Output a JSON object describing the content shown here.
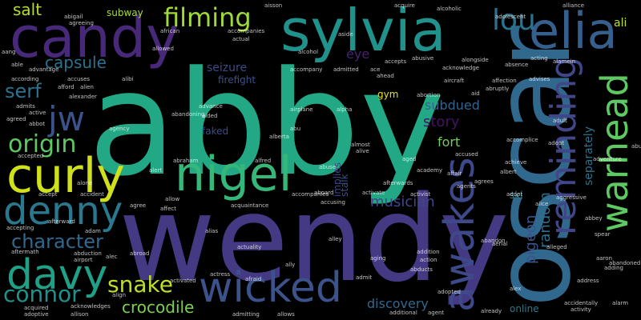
{
  "word_cloud": {
    "words": [
      {
        "text": "abby",
        "color": "#22a884"
      },
      {
        "text": "wendy",
        "color": "#443983"
      },
      {
        "text": "oscar",
        "color": "#31688e"
      },
      {
        "text": "candy",
        "color": "#482878"
      },
      {
        "text": "sylvia",
        "color": "#21918c"
      },
      {
        "text": "curly",
        "color": "#d0e11c"
      },
      {
        "text": "nigel",
        "color": "#35b779"
      },
      {
        "text": "elia",
        "color": "#35608d"
      },
      {
        "text": "warhead",
        "color": "#5ec962"
      },
      {
        "text": "reminding",
        "color": "#404688"
      },
      {
        "text": "awakes",
        "color": "#3e4989"
      },
      {
        "text": "davy",
        "color": "#1fa187"
      },
      {
        "text": "denny",
        "color": "#2a788e"
      },
      {
        "text": "wicked",
        "color": "#3b528b"
      },
      {
        "text": "filming",
        "color": "#a0da39"
      },
      {
        "text": "lou",
        "color": "#2c728e"
      },
      {
        "text": "jw",
        "color": "#3b528b"
      },
      {
        "text": "origin",
        "color": "#5ec962"
      },
      {
        "text": "serf",
        "color": "#2c728e"
      },
      {
        "text": "snake",
        "color": "#bddf26"
      },
      {
        "text": "character",
        "color": "#31688e"
      },
      {
        "text": "connor",
        "color": "#21918c"
      },
      {
        "text": "crocodile",
        "color": "#7ad151"
      },
      {
        "text": "salt",
        "color": "#b5de2b"
      },
      {
        "text": "capsule",
        "color": "#2c728e"
      },
      {
        "text": "story",
        "color": "#471164"
      },
      {
        "text": "subdued",
        "color": "#33638d"
      },
      {
        "text": "musician",
        "color": "#3f4788"
      },
      {
        "text": "discovery",
        "color": "#31688e"
      },
      {
        "text": "fort",
        "color": "#6ece58"
      },
      {
        "text": "pigeon",
        "color": "#3b528b"
      },
      {
        "text": "random",
        "color": "#2d708e"
      },
      {
        "text": "separately",
        "color": "#2c728e"
      },
      {
        "text": "firefight",
        "color": "#3b528b"
      },
      {
        "text": "seizure",
        "color": "#3e4a89"
      },
      {
        "text": "eye",
        "color": "#482173"
      },
      {
        "text": "ali",
        "color": "#bddf26"
      },
      {
        "text": "subway",
        "color": "#a5db36"
      },
      {
        "text": "gym",
        "color": "#e2e418"
      },
      {
        "text": "implies",
        "color": "#3f4788"
      },
      {
        "text": "stalk",
        "color": "#3b528b"
      },
      {
        "text": "faked",
        "color": "#3e4a89"
      },
      {
        "text": "ski",
        "color": "#25838e"
      },
      {
        "text": "online",
        "color": "#2a788e"
      },
      {
        "text": "alcoholic",
        "color": "#ffffff"
      },
      {
        "text": "acquire",
        "color": "#ffffff"
      },
      {
        "text": "aisson",
        "color": "#ffffff"
      },
      {
        "text": "alliance",
        "color": "#ffffff"
      },
      {
        "text": "adolescent",
        "color": "#ffffff"
      },
      {
        "text": "african",
        "color": "#ffffff"
      },
      {
        "text": "allowed",
        "color": "#ffffff"
      },
      {
        "text": "actual",
        "color": "#ffffff"
      },
      {
        "text": "accompanies",
        "color": "#ffffff"
      },
      {
        "text": "alcohol",
        "color": "#ffffff"
      },
      {
        "text": "admitted",
        "color": "#ffffff"
      },
      {
        "text": "accompany",
        "color": "#ffffff"
      },
      {
        "text": "accuses",
        "color": "#ffffff"
      },
      {
        "text": "advantage",
        "color": "#ffffff"
      },
      {
        "text": "according",
        "color": "#ffffff"
      },
      {
        "text": "alexander",
        "color": "#ffffff"
      },
      {
        "text": "alien",
        "color": "#ffffff"
      },
      {
        "text": "afford",
        "color": "#ffffff"
      },
      {
        "text": "active",
        "color": "#ffffff"
      },
      {
        "text": "admits",
        "color": "#ffffff"
      },
      {
        "text": "agreed",
        "color": "#ffffff"
      },
      {
        "text": "accepted",
        "color": "#ffffff"
      },
      {
        "text": "advance",
        "color": "#ffffff"
      },
      {
        "text": "aided",
        "color": "#ffffff"
      },
      {
        "text": "agency",
        "color": "#ffffff"
      },
      {
        "text": "abandoning",
        "color": "#ffffff"
      },
      {
        "text": "airplane",
        "color": "#ffffff"
      },
      {
        "text": "alpha",
        "color": "#ffffff"
      },
      {
        "text": "aid",
        "color": "#ffffff"
      },
      {
        "text": "abu",
        "color": "#ffffff"
      },
      {
        "text": "abortion",
        "color": "#ffffff"
      },
      {
        "text": "aircraft",
        "color": "#ffffff"
      },
      {
        "text": "abruptly",
        "color": "#ffffff"
      },
      {
        "text": "affection",
        "color": "#ffffff"
      },
      {
        "text": "advises",
        "color": "#ffffff"
      },
      {
        "text": "adult",
        "color": "#ffffff"
      },
      {
        "text": "absence",
        "color": "#ffffff"
      },
      {
        "text": "acting",
        "color": "#ffffff"
      },
      {
        "text": "alamein",
        "color": "#ffffff"
      },
      {
        "text": "alongside",
        "color": "#ffffff"
      },
      {
        "text": "acknowledge",
        "color": "#ffffff"
      },
      {
        "text": "ahead",
        "color": "#ffffff"
      },
      {
        "text": "ace",
        "color": "#ffffff"
      },
      {
        "text": "abusive",
        "color": "#ffffff"
      },
      {
        "text": "accepts",
        "color": "#ffffff"
      },
      {
        "text": "almost",
        "color": "#ffffff"
      },
      {
        "text": "alive",
        "color": "#ffffff"
      },
      {
        "text": "abraham",
        "color": "#ffffff"
      },
      {
        "text": "alfred",
        "color": "#ffffff"
      },
      {
        "text": "alert",
        "color": "#ffffff"
      },
      {
        "text": "abuse",
        "color": "#ffffff"
      },
      {
        "text": "afterwards",
        "color": "#ffffff"
      },
      {
        "text": "academy",
        "color": "#ffffff"
      },
      {
        "text": "affair",
        "color": "#ffffff"
      },
      {
        "text": "aged",
        "color": "#ffffff"
      },
      {
        "text": "accused",
        "color": "#ffffff"
      },
      {
        "text": "achieve",
        "color": "#ffffff"
      },
      {
        "text": "albert",
        "color": "#ffffff"
      },
      {
        "text": "adopt",
        "color": "#ffffff"
      },
      {
        "text": "accomplice",
        "color": "#ffffff"
      },
      {
        "text": "aboard",
        "color": "#ffffff"
      },
      {
        "text": "activate",
        "color": "#ffffff"
      },
      {
        "text": "activist",
        "color": "#ffffff"
      },
      {
        "text": "agents",
        "color": "#ffffff"
      },
      {
        "text": "agrees",
        "color": "#ffffff"
      },
      {
        "text": "alice",
        "color": "#ffffff"
      },
      {
        "text": "abbey",
        "color": "#ffffff"
      },
      {
        "text": "aggressive",
        "color": "#ffffff"
      },
      {
        "text": "spear",
        "color": "#ffffff"
      },
      {
        "text": "aaron",
        "color": "#ffffff"
      },
      {
        "text": "abandoned",
        "color": "#ffffff"
      },
      {
        "text": "adding",
        "color": "#ffffff"
      },
      {
        "text": "abandon",
        "color": "#ffffff"
      },
      {
        "text": "accompanies",
        "color": "#ffffff"
      },
      {
        "text": "accusing",
        "color": "#ffffff"
      },
      {
        "text": "acquaintance",
        "color": "#ffffff"
      },
      {
        "text": "affect",
        "color": "#ffffff"
      },
      {
        "text": "agree",
        "color": "#ffffff"
      },
      {
        "text": "allow",
        "color": "#ffffff"
      },
      {
        "text": "accept",
        "color": "#ffffff"
      },
      {
        "text": "alone",
        "color": "#ffffff"
      },
      {
        "text": "accident",
        "color": "#ffffff"
      },
      {
        "text": "afterward",
        "color": "#ffffff"
      },
      {
        "text": "accepting",
        "color": "#ffffff"
      },
      {
        "text": "adam",
        "color": "#ffffff"
      },
      {
        "text": "aftermath",
        "color": "#ffffff"
      },
      {
        "text": "abduction",
        "color": "#ffffff"
      },
      {
        "text": "airport",
        "color": "#ffffff"
      },
      {
        "text": "alec",
        "color": "#ffffff"
      },
      {
        "text": "alias",
        "color": "#ffffff"
      },
      {
        "text": "actuality",
        "color": "#ffffff"
      },
      {
        "text": "ally",
        "color": "#ffffff"
      },
      {
        "text": "alley",
        "color": "#ffffff"
      },
      {
        "text": "aging",
        "color": "#ffffff"
      },
      {
        "text": "addition",
        "color": "#ffffff"
      },
      {
        "text": "action",
        "color": "#ffffff"
      },
      {
        "text": "abducts",
        "color": "#ffffff"
      },
      {
        "text": "alex",
        "color": "#ffffff"
      },
      {
        "text": "activated",
        "color": "#ffffff"
      },
      {
        "text": "actress",
        "color": "#ffffff"
      },
      {
        "text": "afraid",
        "color": "#ffffff"
      },
      {
        "text": "acquired",
        "color": "#ffffff"
      },
      {
        "text": "adoptive",
        "color": "#ffffff"
      },
      {
        "text": "acknowledges",
        "color": "#ffffff"
      },
      {
        "text": "allison",
        "color": "#ffffff"
      },
      {
        "text": "admitting",
        "color": "#ffffff"
      },
      {
        "text": "allows",
        "color": "#ffffff"
      },
      {
        "text": "additional",
        "color": "#ffffff"
      },
      {
        "text": "agent",
        "color": "#ffffff"
      },
      {
        "text": "already",
        "color": "#ffffff"
      },
      {
        "text": "accidentally",
        "color": "#ffffff"
      },
      {
        "text": "activity",
        "color": "#ffffff"
      },
      {
        "text": "alarm",
        "color": "#ffffff"
      },
      {
        "text": "align",
        "color": "#ffffff"
      },
      {
        "text": "adopted",
        "color": "#ffffff"
      },
      {
        "text": "address",
        "color": "#ffffff"
      },
      {
        "text": "abused",
        "color": "#ffffff"
      },
      {
        "text": "adventure",
        "color": "#ffffff"
      },
      {
        "text": "alleged",
        "color": "#ffffff"
      },
      {
        "text": "admit",
        "color": "#ffffff"
      },
      {
        "text": "aside",
        "color": "#ffffff"
      },
      {
        "text": "abigail",
        "color": "#ffffff"
      },
      {
        "text": "agreeing",
        "color": "#ffffff"
      },
      {
        "text": "able",
        "color": "#ffffff"
      },
      {
        "text": "aang",
        "color": "#ffffff"
      },
      {
        "text": "abbot",
        "color": "#ffffff"
      },
      {
        "text": "alberta",
        "color": "#ffffff"
      },
      {
        "text": "adopt",
        "color": "#ffffff"
      },
      {
        "text": "alibi",
        "color": "#ffffff"
      },
      {
        "text": "abroad",
        "color": "#ffffff"
      },
      {
        "text": "aerial",
        "color": "#ffffff"
      }
    ]
  }
}
